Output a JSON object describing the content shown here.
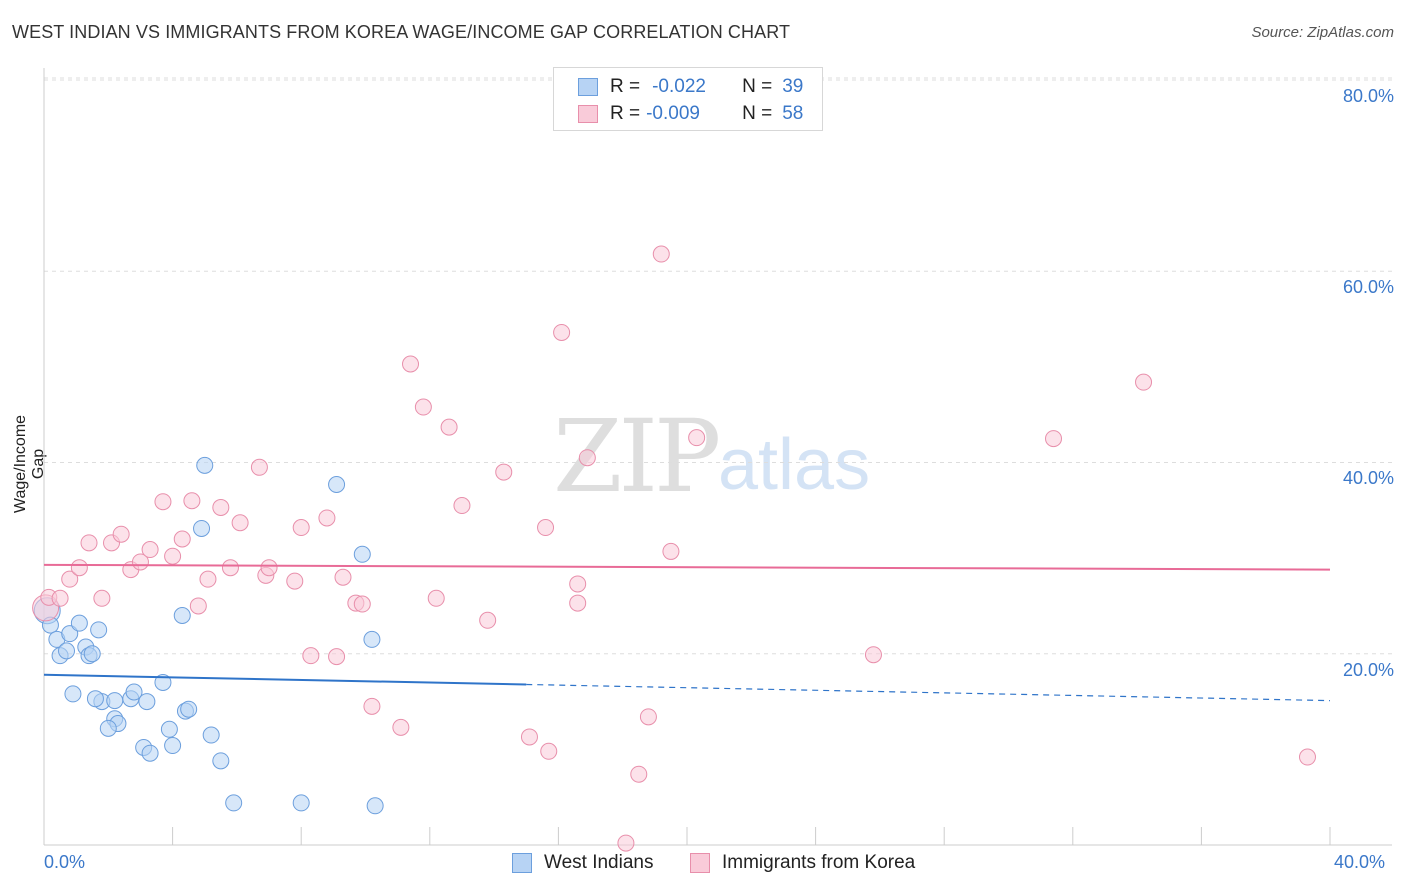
{
  "chart_data": {
    "type": "scatter",
    "title": "WEST INDIAN VS IMMIGRANTS FROM KOREA WAGE/INCOME GAP CORRELATION CHART",
    "source": "Source: ZipAtlas.com",
    "xlabel": "",
    "ylabel": "Wage/Income Gap",
    "xlim": [
      0,
      40
    ],
    "ylim": [
      0,
      80
    ],
    "x_tick_labels": [
      "0.0%",
      "40.0%"
    ],
    "y_tick_labels": [
      "20.0%",
      "40.0%",
      "60.0%",
      "80.0%"
    ],
    "y_tick_values": [
      20,
      40,
      60,
      80
    ],
    "grid": true,
    "watermark": [
      "ZIP",
      "atlas"
    ],
    "legend": {
      "placement": "top-center",
      "rows": [
        {
          "r_label": "R =",
          "r_value": "-0.022",
          "n_label": "N =",
          "n_value": "39"
        },
        {
          "r_label": "R =",
          "r_value": "-0.009",
          "n_label": "N =",
          "n_value": "58"
        }
      ]
    },
    "colors": {
      "west_indians_fill": "#b7d3f4",
      "west_indians_stroke": "#6c9fdd",
      "west_indians_line": "#2f74c9",
      "korea_fill": "#f9cbd9",
      "korea_stroke": "#e88fab",
      "korea_line": "#e86b97"
    },
    "series": [
      {
        "name": "West Indians",
        "trend": {
          "x0": 0,
          "y0": 17.8,
          "x1": 40,
          "y1": 15.1,
          "solid_until": 15
        },
        "points": [
          [
            0.1,
            24.5
          ],
          [
            0.2,
            23.0
          ],
          [
            0.4,
            21.5
          ],
          [
            0.5,
            19.8
          ],
          [
            0.7,
            20.3
          ],
          [
            0.8,
            22.1
          ],
          [
            0.9,
            15.8
          ],
          [
            1.1,
            23.2
          ],
          [
            1.3,
            20.7
          ],
          [
            1.4,
            19.8
          ],
          [
            1.5,
            20.0
          ],
          [
            1.7,
            22.5
          ],
          [
            1.8,
            15.0
          ],
          [
            1.6,
            15.3
          ],
          [
            2.2,
            15.1
          ],
          [
            2.2,
            13.2
          ],
          [
            2.3,
            12.7
          ],
          [
            2.0,
            12.2
          ],
          [
            2.7,
            15.3
          ],
          [
            2.8,
            16.0
          ],
          [
            3.2,
            15.0
          ],
          [
            3.1,
            10.2
          ],
          [
            3.3,
            9.6
          ],
          [
            3.7,
            17.0
          ],
          [
            3.9,
            12.1
          ],
          [
            4.0,
            10.4
          ],
          [
            4.3,
            24.0
          ],
          [
            4.4,
            14.0
          ],
          [
            4.5,
            14.2
          ],
          [
            4.9,
            33.1
          ],
          [
            5.0,
            39.7
          ],
          [
            5.2,
            11.5
          ],
          [
            5.5,
            8.8
          ],
          [
            5.9,
            4.4
          ],
          [
            8.0,
            4.4
          ],
          [
            9.1,
            37.7
          ],
          [
            9.9,
            30.4
          ],
          [
            10.2,
            21.5
          ],
          [
            10.3,
            4.1
          ]
        ]
      },
      {
        "name": "Immigrants from Korea",
        "trend": {
          "x0": 0,
          "y0": 29.3,
          "x1": 40,
          "y1": 28.8
        },
        "points": [
          [
            0.05,
            24.8
          ],
          [
            0.15,
            25.9
          ],
          [
            0.5,
            25.8
          ],
          [
            0.8,
            27.8
          ],
          [
            1.1,
            29.0
          ],
          [
            1.4,
            31.6
          ],
          [
            1.8,
            25.8
          ],
          [
            2.1,
            31.6
          ],
          [
            2.4,
            32.5
          ],
          [
            2.7,
            28.8
          ],
          [
            3.0,
            29.6
          ],
          [
            3.3,
            30.9
          ],
          [
            3.7,
            35.9
          ],
          [
            4.0,
            30.2
          ],
          [
            4.3,
            32.0
          ],
          [
            4.6,
            36.0
          ],
          [
            4.8,
            25.0
          ],
          [
            5.1,
            27.8
          ],
          [
            5.5,
            35.3
          ],
          [
            5.8,
            29.0
          ],
          [
            6.1,
            33.7
          ],
          [
            6.7,
            39.5
          ],
          [
            6.9,
            28.2
          ],
          [
            7.0,
            29.0
          ],
          [
            7.8,
            27.6
          ],
          [
            8.0,
            33.2
          ],
          [
            8.3,
            19.8
          ],
          [
            8.8,
            34.2
          ],
          [
            9.1,
            19.7
          ],
          [
            9.3,
            28.0
          ],
          [
            9.7,
            25.3
          ],
          [
            9.9,
            25.2
          ],
          [
            10.2,
            14.5
          ],
          [
            11.1,
            12.3
          ],
          [
            11.4,
            50.3
          ],
          [
            11.8,
            45.8
          ],
          [
            12.2,
            25.8
          ],
          [
            12.6,
            43.7
          ],
          [
            13.0,
            35.5
          ],
          [
            13.8,
            23.5
          ],
          [
            14.3,
            39.0
          ],
          [
            15.1,
            11.3
          ],
          [
            15.6,
            33.2
          ],
          [
            15.7,
            9.8
          ],
          [
            16.1,
            53.6
          ],
          [
            16.6,
            27.3
          ],
          [
            16.6,
            25.3
          ],
          [
            16.9,
            40.5
          ],
          [
            18.1,
            0.2
          ],
          [
            18.5,
            7.4
          ],
          [
            18.8,
            13.4
          ],
          [
            19.2,
            61.8
          ],
          [
            19.5,
            30.7
          ],
          [
            20.3,
            42.6
          ],
          [
            25.8,
            19.9
          ],
          [
            31.4,
            42.5
          ],
          [
            34.2,
            48.4
          ],
          [
            39.3,
            9.2
          ]
        ]
      }
    ]
  }
}
